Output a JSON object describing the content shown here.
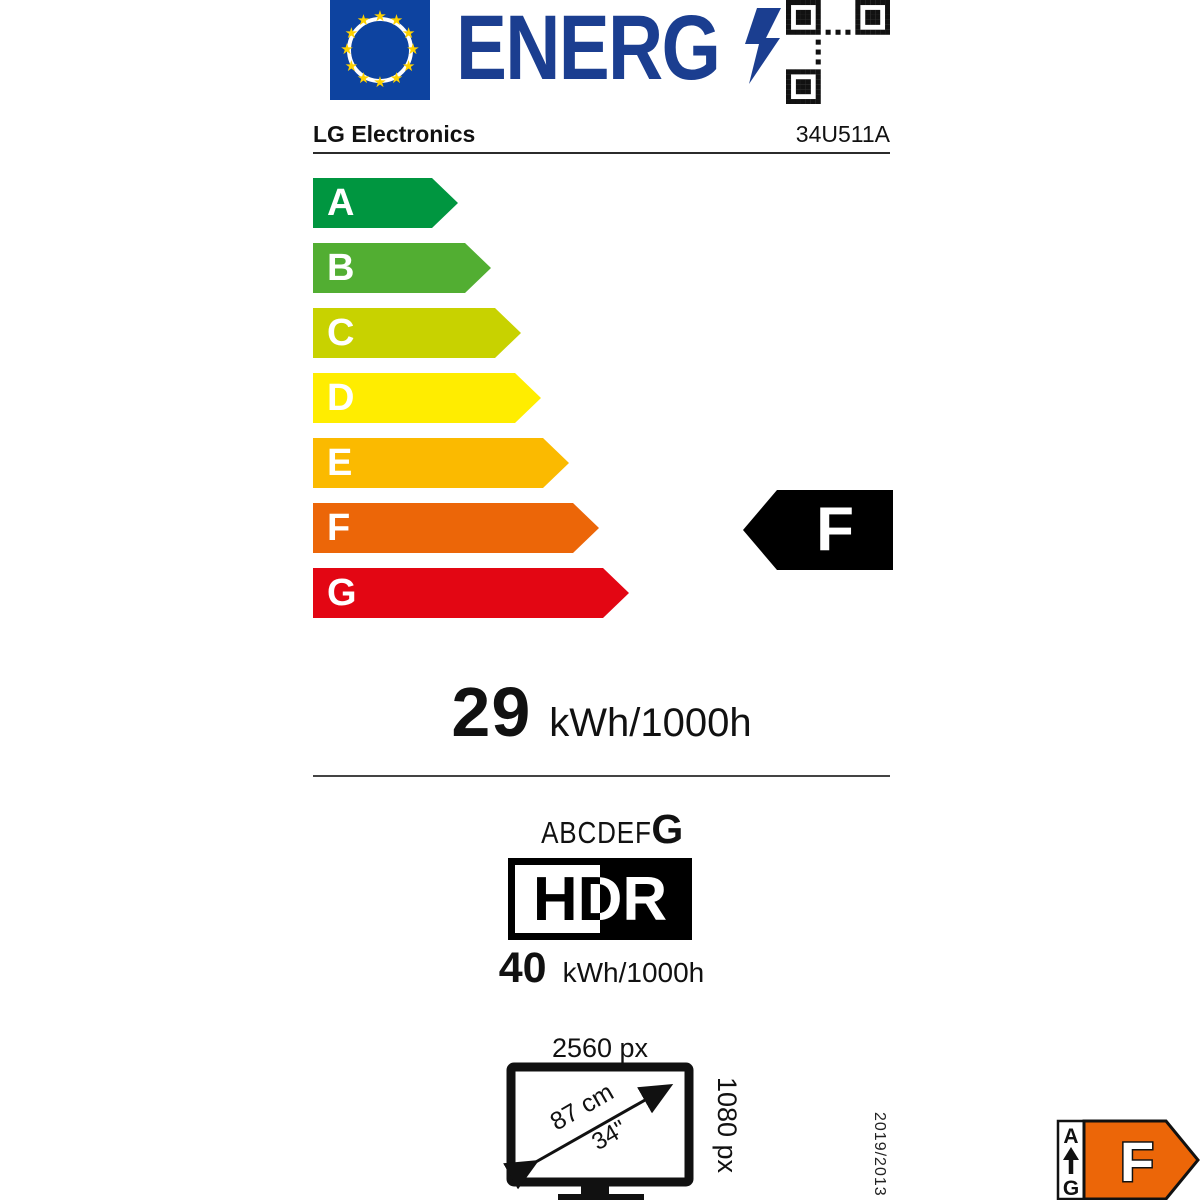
{
  "header": {
    "logo_text": "ENERG",
    "brand": "LG Electronics",
    "model": "34U511A",
    "flag_color": "#0d43a0",
    "logo_color": "#1b3e90",
    "star_color": "#ffd200"
  },
  "efficiency_scale": {
    "classes": [
      {
        "label": "A",
        "color": "#009640"
      },
      {
        "label": "B",
        "color": "#52ae32"
      },
      {
        "label": "C",
        "color": "#c8d200"
      },
      {
        "label": "D",
        "color": "#ffed00"
      },
      {
        "label": "E",
        "color": "#fbba00"
      },
      {
        "label": "F",
        "color": "#ec6608"
      },
      {
        "label": "G",
        "color": "#e30613"
      }
    ],
    "rated_class": "F"
  },
  "consumption_sdr": {
    "value": "29",
    "unit": "kWh/1000h"
  },
  "hdr": {
    "scale_prefix": "ABCDEF",
    "scale_max": "G",
    "logo": "HDR",
    "value": "40",
    "unit": "kWh/1000h"
  },
  "screen": {
    "horizontal_resolution": "2560 px",
    "vertical_resolution": "1080 px",
    "diagonal_cm": "87 cm",
    "diagonal_inch": "34\""
  },
  "footer": {
    "regulation": "2019/2013",
    "badge": {
      "best": "A",
      "worst": "G",
      "rated": "F",
      "arrow_color": "#ec6608"
    }
  }
}
